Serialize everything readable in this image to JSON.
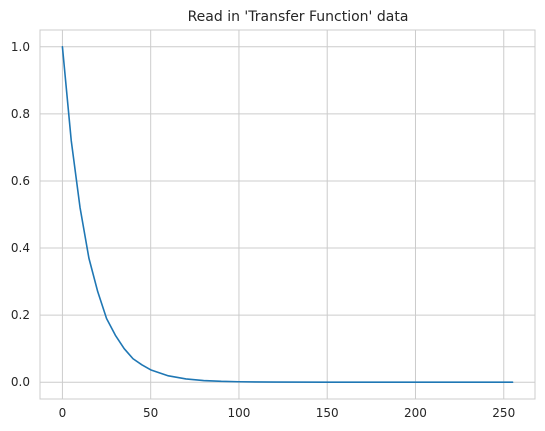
{
  "chart_data": {
    "type": "line",
    "title": "Read in 'Transfer Function' data",
    "xlabel": "",
    "ylabel": "",
    "xlim": [
      -12.7,
      267.7
    ],
    "ylim": [
      -0.05,
      1.05
    ],
    "xticks": [
      0,
      50,
      100,
      150,
      200,
      250
    ],
    "yticks": [
      0.0,
      0.2,
      0.4,
      0.6,
      0.8,
      1.0
    ],
    "xtick_labels": [
      "0",
      "50",
      "100",
      "150",
      "200",
      "250"
    ],
    "ytick_labels": [
      "0.0",
      "0.2",
      "0.4",
      "0.6",
      "0.8",
      "1.0"
    ],
    "grid": true,
    "legend": "none",
    "series": [
      {
        "color": "#1f77b4",
        "x": [
          0,
          5,
          10,
          15,
          20,
          25,
          30,
          35,
          40,
          45,
          50,
          60,
          70,
          80,
          90,
          100,
          120,
          150,
          200,
          255
        ],
        "y": [
          1.0,
          0.72,
          0.52,
          0.37,
          0.27,
          0.19,
          0.14,
          0.1,
          0.07,
          0.052,
          0.037,
          0.019,
          0.0098,
          0.005,
          0.0026,
          0.0014,
          0.0004,
          0.0,
          0.0,
          0.0
        ]
      }
    ]
  }
}
